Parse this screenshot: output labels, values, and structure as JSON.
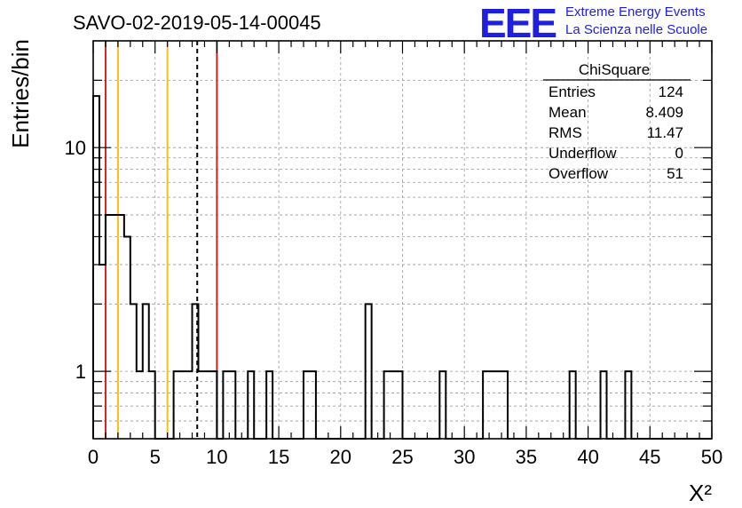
{
  "chart_data": {
    "type": "bar",
    "title": "SAVO-02-2019-05-14-00045",
    "xlabel": "X²",
    "ylabel": "Entries/bin",
    "xlim": [
      0,
      50
    ],
    "ylim": [
      0.5,
      30
    ],
    "yscale": "log",
    "grid": true,
    "xticks": [
      "0",
      "5",
      "10",
      "15",
      "20",
      "25",
      "30",
      "35",
      "40",
      "45",
      "50"
    ],
    "yticks": [
      {
        "value": 1,
        "label": "1"
      },
      {
        "value": 10,
        "label": "10"
      }
    ],
    "bin_width": 0.5,
    "bins": [
      {
        "x": 0.0,
        "y": 17
      },
      {
        "x": 0.5,
        "y": 3
      },
      {
        "x": 1.0,
        "y": 5
      },
      {
        "x": 1.5,
        "y": 5
      },
      {
        "x": 2.0,
        "y": 5
      },
      {
        "x": 2.5,
        "y": 4
      },
      {
        "x": 3.0,
        "y": 2
      },
      {
        "x": 3.5,
        "y": 1
      },
      {
        "x": 4.0,
        "y": 2
      },
      {
        "x": 4.5,
        "y": 1
      },
      {
        "x": 5.0,
        "y": 0
      },
      {
        "x": 5.5,
        "y": 0
      },
      {
        "x": 6.0,
        "y": 0
      },
      {
        "x": 6.5,
        "y": 1
      },
      {
        "x": 7.0,
        "y": 1
      },
      {
        "x": 7.5,
        "y": 1
      },
      {
        "x": 8.0,
        "y": 2
      },
      {
        "x": 8.5,
        "y": 1
      },
      {
        "x": 9.0,
        "y": 1
      },
      {
        "x": 9.5,
        "y": 1
      },
      {
        "x": 10.5,
        "y": 1
      },
      {
        "x": 11.0,
        "y": 1
      },
      {
        "x": 12.5,
        "y": 1
      },
      {
        "x": 14.0,
        "y": 1
      },
      {
        "x": 17.0,
        "y": 1
      },
      {
        "x": 17.5,
        "y": 1
      },
      {
        "x": 22.0,
        "y": 2
      },
      {
        "x": 23.5,
        "y": 1
      },
      {
        "x": 24.0,
        "y": 1
      },
      {
        "x": 24.5,
        "y": 1
      },
      {
        "x": 28.0,
        "y": 1
      },
      {
        "x": 31.5,
        "y": 1
      },
      {
        "x": 32.0,
        "y": 1
      },
      {
        "x": 32.5,
        "y": 1
      },
      {
        "x": 33.0,
        "y": 1
      },
      {
        "x": 38.5,
        "y": 1
      },
      {
        "x": 41.0,
        "y": 1
      },
      {
        "x": 43.0,
        "y": 1
      }
    ],
    "reference_lines": [
      {
        "x": 1.0,
        "color": "#d42020",
        "style": "solid"
      },
      {
        "x": 2.0,
        "color": "#f0c020",
        "style": "solid"
      },
      {
        "x": 6.0,
        "color": "#f0c020",
        "style": "solid"
      },
      {
        "x": 8.409,
        "color": "#000000",
        "style": "dashed"
      },
      {
        "x": 10.0,
        "color": "#d42020",
        "style": "solid"
      }
    ],
    "stats_box": {
      "title": "ChiSquare",
      "rows": [
        {
          "label": "Entries",
          "value": "124"
        },
        {
          "label": "Mean",
          "value": "8.409"
        },
        {
          "label": "RMS",
          "value": "11.47"
        },
        {
          "label": "Underflow",
          "value": "0"
        },
        {
          "label": "Overflow",
          "value": "51"
        }
      ]
    }
  },
  "logo": {
    "big": "EEE",
    "line1": "Extreme Energy Events",
    "line2": "La Scienza nelle Scuole"
  }
}
